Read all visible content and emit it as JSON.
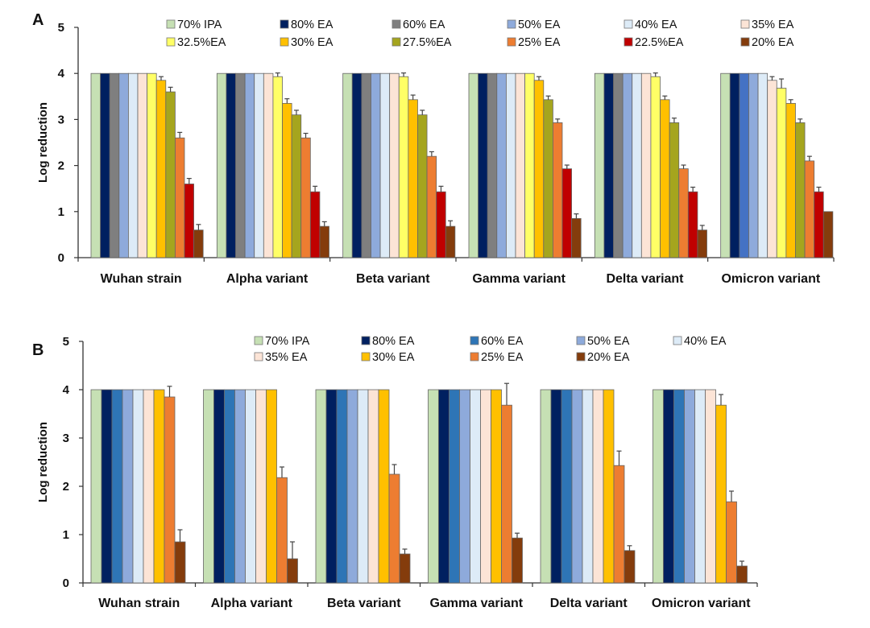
{
  "chart_data": [
    {
      "panel": "A",
      "type": "bar",
      "ylabel": "Log reduction",
      "ylim": [
        0,
        5
      ],
      "yticks": [
        "0",
        "1",
        "2",
        "3",
        "4",
        "5"
      ],
      "categories": [
        "Wuhan strain",
        "Alpha variant",
        "Beta variant",
        "Gamma variant",
        "Delta variant",
        "Omicron variant"
      ],
      "legend_position": "top",
      "series": [
        {
          "name": "70% IPA",
          "color": "#c6e0b4",
          "values": [
            4,
            4,
            4,
            4,
            4,
            4
          ],
          "errors": [
            0,
            0,
            0,
            0,
            0,
            0
          ]
        },
        {
          "name": "80% EA",
          "color": "#002060",
          "values": [
            4,
            4,
            4,
            4,
            4,
            4
          ],
          "errors": [
            0,
            0,
            0,
            0,
            0,
            0
          ]
        },
        {
          "name": "60% EA",
          "color": "#7f7f7f",
          "colors": [
            "#7f7f7f",
            "#7f7f7f",
            "#7f7f7f",
            "#7f7f7f",
            "#7f7f7f",
            "#4472c4"
          ],
          "values": [
            4,
            4,
            4,
            4,
            4,
            4
          ],
          "errors": [
            0,
            0,
            0,
            0,
            0,
            0
          ]
        },
        {
          "name": "50% EA",
          "color": "#8eaadb",
          "values": [
            4,
            4,
            4,
            4,
            4,
            4
          ],
          "errors": [
            0,
            0,
            0,
            0,
            0,
            0
          ]
        },
        {
          "name": "40% EA",
          "color": "#ddebf7",
          "values": [
            4,
            4,
            4,
            4,
            4,
            4
          ],
          "errors": [
            0,
            0,
            0,
            0,
            0,
            0
          ]
        },
        {
          "name": "35% EA",
          "color": "#fce4d6",
          "values": [
            4,
            4,
            4,
            4,
            4,
            3.85
          ],
          "errors": [
            0,
            0,
            0,
            0,
            0,
            0.08
          ]
        },
        {
          "name": "32.5%EA",
          "color": "#ffff66",
          "values": [
            4,
            3.93,
            3.93,
            4,
            3.93,
            3.68
          ],
          "errors": [
            0,
            0.08,
            0.08,
            0,
            0.08,
            0.2
          ]
        },
        {
          "name": "30% EA",
          "color": "#ffc000",
          "values": [
            3.85,
            3.35,
            3.43,
            3.85,
            3.43,
            3.35
          ],
          "errors": [
            0.08,
            0.1,
            0.1,
            0.08,
            0.08,
            0.08
          ]
        },
        {
          "name": "27.5%EA",
          "color": "#a5a51e",
          "values": [
            3.6,
            3.1,
            3.1,
            3.43,
            2.93,
            2.93
          ],
          "errors": [
            0.1,
            0.1,
            0.1,
            0.08,
            0.1,
            0.08
          ]
        },
        {
          "name": "25% EA",
          "color": "#ed7d31",
          "values": [
            2.6,
            2.6,
            2.2,
            2.93,
            1.93,
            2.1
          ],
          "errors": [
            0.12,
            0.1,
            0.1,
            0.08,
            0.08,
            0.1
          ]
        },
        {
          "name": "22.5%EA",
          "color": "#c00000",
          "values": [
            1.6,
            1.43,
            1.43,
            1.93,
            1.43,
            1.43
          ],
          "errors": [
            0.12,
            0.12,
            0.12,
            0.08,
            0.1,
            0.1
          ]
        },
        {
          "name": "20% EA",
          "color": "#843c0c",
          "values": [
            0.6,
            0.68,
            0.68,
            0.85,
            0.6,
            1.0
          ],
          "errors": [
            0.12,
            0.1,
            0.12,
            0.1,
            0.1,
            0
          ]
        }
      ]
    },
    {
      "panel": "B",
      "type": "bar",
      "ylabel": "Log reduction",
      "ylim": [
        0,
        5
      ],
      "yticks": [
        "0",
        "1",
        "2",
        "3",
        "4",
        "5"
      ],
      "categories": [
        "Wuhan strain",
        "Alpha variant",
        "Beta variant",
        "Gamma variant",
        "Delta variant",
        "Omicron variant"
      ],
      "legend_position": "top",
      "series": [
        {
          "name": "70% IPA",
          "color": "#c6e0b4",
          "values": [
            4,
            4,
            4,
            4,
            4,
            4
          ],
          "errors": [
            0,
            0,
            0,
            0,
            0,
            0
          ]
        },
        {
          "name": "80% EA",
          "color": "#002060",
          "values": [
            4,
            4,
            4,
            4,
            4,
            4
          ],
          "errors": [
            0,
            0,
            0,
            0,
            0,
            0
          ]
        },
        {
          "name": "60% EA",
          "color": "#2e75b6",
          "values": [
            4,
            4,
            4,
            4,
            4,
            4
          ],
          "errors": [
            0,
            0,
            0,
            0,
            0,
            0
          ]
        },
        {
          "name": "50% EA",
          "color": "#8eaadb",
          "values": [
            4,
            4,
            4,
            4,
            4,
            4
          ],
          "errors": [
            0,
            0,
            0,
            0,
            0,
            0
          ]
        },
        {
          "name": "40% EA",
          "color": "#ddebf7",
          "values": [
            4,
            4,
            4,
            4,
            4,
            4
          ],
          "errors": [
            0,
            0,
            0,
            0,
            0,
            0
          ]
        },
        {
          "name": "35% EA",
          "color": "#fce4d6",
          "values": [
            4,
            4,
            4,
            4,
            4,
            4
          ],
          "errors": [
            0,
            0,
            0,
            0,
            0,
            0
          ]
        },
        {
          "name": "30% EA",
          "color": "#ffc000",
          "values": [
            4,
            4,
            4,
            4,
            4,
            3.68
          ],
          "errors": [
            0,
            0,
            0,
            0,
            0,
            0.22
          ]
        },
        {
          "name": "25% EA",
          "color": "#ed7d31",
          "values": [
            3.85,
            2.18,
            2.25,
            3.68,
            2.43,
            1.68
          ],
          "errors": [
            0.22,
            0.22,
            0.2,
            0.45,
            0.3,
            0.22
          ]
        },
        {
          "name": "20% EA",
          "color": "#843c0c",
          "values": [
            0.85,
            0.5,
            0.6,
            0.93,
            0.67,
            0.35
          ],
          "errors": [
            0.25,
            0.35,
            0.1,
            0.1,
            0.1,
            0.1
          ]
        }
      ]
    }
  ]
}
